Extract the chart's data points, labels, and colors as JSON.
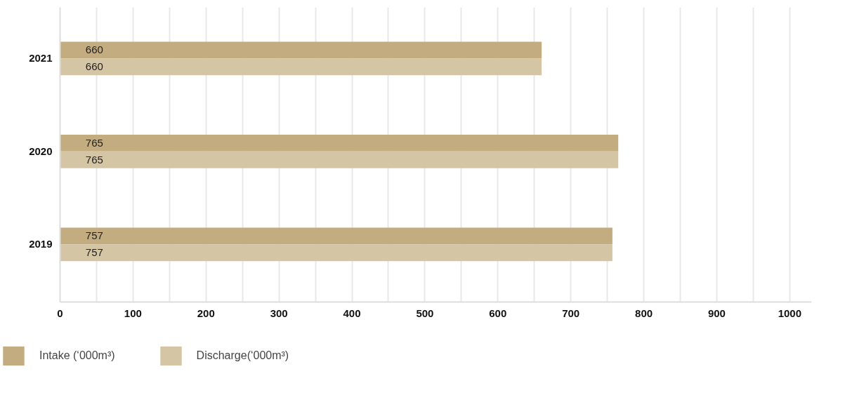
{
  "chart_data": {
    "type": "bar",
    "orientation": "horizontal",
    "categories": [
      "2021",
      "2020",
      "2019"
    ],
    "series": [
      {
        "name": "Intake (‘000m³)",
        "color": "#c2ac80",
        "values": [
          660,
          765,
          757
        ]
      },
      {
        "name": "Discharge(‘000m³)",
        "color": "#d4c5a5",
        "values": [
          660,
          765,
          757
        ]
      }
    ],
    "xlim": [
      0,
      1030
    ],
    "xticks": [
      0,
      {
        "value": 50,
        "label": null
      },
      100,
      {
        "value": 150,
        "label": null
      },
      200,
      {
        "value": 250,
        "label": null
      },
      300,
      {
        "value": 350,
        "label": null
      },
      400,
      {
        "value": 450,
        "label": null
      },
      500,
      {
        "value": 550,
        "label": null
      },
      600,
      {
        "value": 650,
        "label": null
      },
      700,
      {
        "value": 750,
        "label": null
      },
      800,
      {
        "value": 850,
        "label": null
      },
      900,
      {
        "value": 950,
        "label": null
      },
      1000
    ],
    "grid": "x",
    "legend": "bottom left",
    "data_labels": true
  }
}
